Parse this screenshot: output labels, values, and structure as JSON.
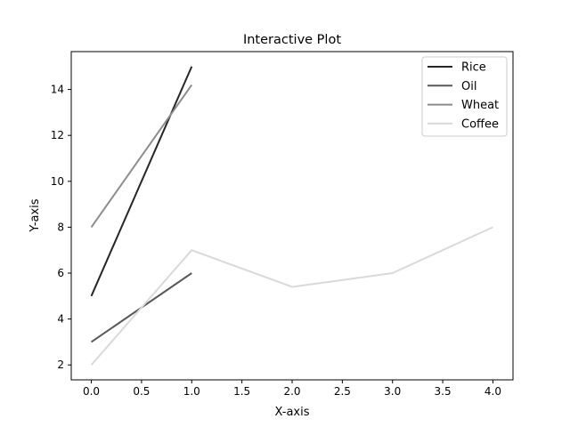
{
  "chart_data": {
    "type": "line",
    "title": "Interactive Plot",
    "xlabel": "X-axis",
    "ylabel": "Y-axis",
    "xlim": [
      -0.2,
      4.2
    ],
    "ylim": [
      1.35,
      15.65
    ],
    "xticks": [
      0.0,
      0.5,
      1.0,
      1.5,
      2.0,
      2.5,
      3.0,
      3.5,
      4.0
    ],
    "xtick_labels": [
      "0.0",
      "0.5",
      "1.0",
      "1.5",
      "2.0",
      "2.5",
      "3.0",
      "3.5",
      "4.0"
    ],
    "yticks": [
      2,
      4,
      6,
      8,
      10,
      12,
      14
    ],
    "ytick_labels": [
      "2",
      "4",
      "6",
      "8",
      "10",
      "12",
      "14"
    ],
    "grid": false,
    "legend_position": "top-right",
    "series": [
      {
        "name": "Rice",
        "color": "#262626",
        "x": [
          0,
          1
        ],
        "y": [
          5,
          15
        ]
      },
      {
        "name": "Oil",
        "color": "#595959",
        "x": [
          0,
          1
        ],
        "y": [
          3,
          6
        ]
      },
      {
        "name": "Wheat",
        "color": "#8c8c8c",
        "x": [
          0,
          1
        ],
        "y": [
          8,
          14.2
        ]
      },
      {
        "name": "Coffee",
        "color": "#d9d9d9",
        "x": [
          0,
          1,
          2,
          3,
          4
        ],
        "y": [
          2,
          7,
          5.4,
          6,
          8
        ]
      }
    ]
  }
}
